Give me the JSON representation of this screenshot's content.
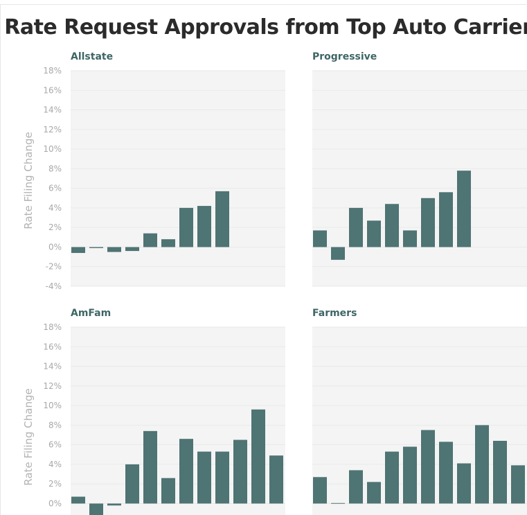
{
  "chart_data": {
    "type": "bar",
    "title": "Rate Request Approvals from Top Auto Carriers",
    "ylabel": "Rate Filing Change",
    "ylim": [
      -4,
      18
    ],
    "yticks": [
      "18%",
      "16%",
      "14%",
      "12%",
      "10%",
      "8%",
      "6%",
      "4%",
      "2%",
      "0%",
      "-2%",
      "-4%"
    ],
    "bar_color": "#4e7473",
    "panels": [
      {
        "name": "Allstate",
        "values": [
          -0.6,
          -0.1,
          -0.5,
          -0.4,
          1.4,
          0.8,
          4.0,
          4.2,
          5.7
        ]
      },
      {
        "name": "Progressive",
        "values": [
          1.7,
          -1.3,
          4.0,
          2.7,
          4.4,
          1.7,
          5.0,
          5.6,
          7.8
        ]
      },
      {
        "name": "AmFam",
        "values": [
          0.7,
          -1.3,
          -0.2,
          4.0,
          7.4,
          2.6,
          6.6,
          5.3,
          5.3,
          6.5,
          9.6,
          4.9
        ]
      },
      {
        "name": "Farmers",
        "values": [
          2.7,
          0.05,
          3.4,
          2.2,
          5.3,
          5.8,
          7.5,
          6.3,
          4.1,
          8.0,
          6.4,
          3.9
        ]
      }
    ]
  }
}
